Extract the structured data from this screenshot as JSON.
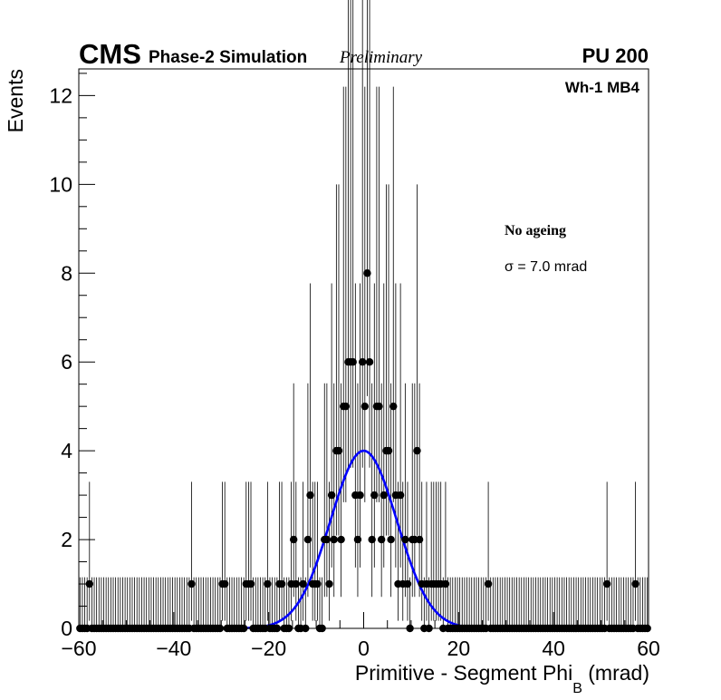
{
  "chart_data": {
    "type": "scatter",
    "title": "",
    "header": {
      "experiment": "CMS",
      "label": "Phase-2 Simulation",
      "status": "Preliminary",
      "pileup": "PU 200"
    },
    "region_label": "Wh-1 MB4",
    "annotations": [
      "No ageing",
      "σ = 7.0 mrad"
    ],
    "xlabel_main": "Primitive - Segment Phi",
    "xlabel_sub": "B",
    "xlabel_unit": "(mrad)",
    "ylabel": "Events",
    "xlim": [
      -60,
      60
    ],
    "ylim": [
      0,
      12.6
    ],
    "xticks": [
      -60,
      -40,
      -20,
      0,
      20,
      40,
      60
    ],
    "xtick_labels": [
      "−60",
      "−40",
      "−20",
      "0",
      "20",
      "40",
      "60"
    ],
    "yticks": [
      0,
      2,
      4,
      6,
      8,
      10,
      12
    ],
    "ytick_labels": [
      "0",
      "2",
      "4",
      "6",
      "8",
      "10",
      "12"
    ],
    "grid": false,
    "bin_width": 0.5,
    "series": [
      {
        "kind": "data",
        "color": "#000000",
        "points": [
          {
            "x": -57.75,
            "y": 1
          },
          {
            "x": -36.25,
            "y": 1
          },
          {
            "x": -29.75,
            "y": 1
          },
          {
            "x": -29.25,
            "y": 1
          },
          {
            "x": -24.75,
            "y": 1
          },
          {
            "x": -24.25,
            "y": 1
          },
          {
            "x": -23.75,
            "y": 1
          },
          {
            "x": -20.25,
            "y": 1
          },
          {
            "x": -17.75,
            "y": 1
          },
          {
            "x": -17.25,
            "y": 1
          },
          {
            "x": -15.25,
            "y": 1
          },
          {
            "x": -14.75,
            "y": 2
          },
          {
            "x": -14.25,
            "y": 1
          },
          {
            "x": -12.75,
            "y": 1
          },
          {
            "x": -11.75,
            "y": 2
          },
          {
            "x": -11.25,
            "y": 3
          },
          {
            "x": -10.75,
            "y": 1
          },
          {
            "x": -10.25,
            "y": 1
          },
          {
            "x": -9.75,
            "y": 1
          },
          {
            "x": -8.25,
            "y": 2
          },
          {
            "x": -7.75,
            "y": 2
          },
          {
            "x": -7.25,
            "y": 1
          },
          {
            "x": -6.75,
            "y": 3
          },
          {
            "x": -6.25,
            "y": 2
          },
          {
            "x": -5.75,
            "y": 4
          },
          {
            "x": -5.25,
            "y": 4
          },
          {
            "x": -4.75,
            "y": 2
          },
          {
            "x": -4.25,
            "y": 5
          },
          {
            "x": -3.75,
            "y": 5
          },
          {
            "x": -3.25,
            "y": 6
          },
          {
            "x": -2.75,
            "y": 6
          },
          {
            "x": -2.25,
            "y": 6
          },
          {
            "x": -1.75,
            "y": 3
          },
          {
            "x": -1.25,
            "y": 2
          },
          {
            "x": -0.75,
            "y": 3
          },
          {
            "x": -0.25,
            "y": 6
          },
          {
            "x": 0.25,
            "y": 5
          },
          {
            "x": 0.75,
            "y": 8
          },
          {
            "x": 1.25,
            "y": 6
          },
          {
            "x": 1.75,
            "y": 2
          },
          {
            "x": 2.25,
            "y": 3
          },
          {
            "x": 2.75,
            "y": 5
          },
          {
            "x": 3.25,
            "y": 5
          },
          {
            "x": 3.75,
            "y": 2
          },
          {
            "x": 4.25,
            "y": 3
          },
          {
            "x": 4.75,
            "y": 4
          },
          {
            "x": 5.25,
            "y": 4
          },
          {
            "x": 5.75,
            "y": 2
          },
          {
            "x": 6.25,
            "y": 5
          },
          {
            "x": 6.75,
            "y": 3
          },
          {
            "x": 7.25,
            "y": 1
          },
          {
            "x": 7.75,
            "y": 3
          },
          {
            "x": 8.25,
            "y": 1
          },
          {
            "x": 8.75,
            "y": 2
          },
          {
            "x": 9.25,
            "y": 1
          },
          {
            "x": 10.25,
            "y": 2
          },
          {
            "x": 10.75,
            "y": 2
          },
          {
            "x": 11.25,
            "y": 4
          },
          {
            "x": 11.75,
            "y": 2
          },
          {
            "x": 12.25,
            "y": 1
          },
          {
            "x": 13.25,
            "y": 1
          },
          {
            "x": 14.25,
            "y": 1
          },
          {
            "x": 14.75,
            "y": 1
          },
          {
            "x": 15.25,
            "y": 1
          },
          {
            "x": 15.75,
            "y": 1
          },
          {
            "x": 16.25,
            "y": 1
          },
          {
            "x": 17.25,
            "y": 1
          },
          {
            "x": 26.25,
            "y": 1
          },
          {
            "x": 51.25,
            "y": 1
          },
          {
            "x": 57.25,
            "y": 1
          }
        ]
      },
      {
        "kind": "fit",
        "function": "gaussian",
        "color": "#0000ff",
        "amplitude": 4.0,
        "mean": 0.0,
        "sigma": 7.0
      }
    ]
  }
}
